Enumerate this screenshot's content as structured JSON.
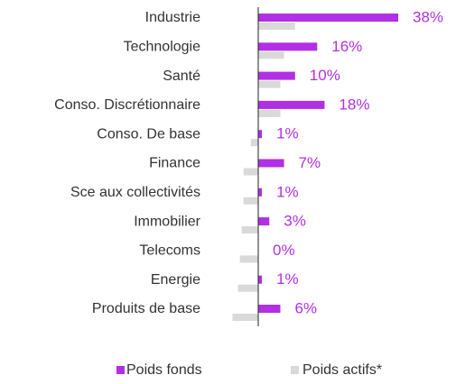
{
  "chart_data": {
    "type": "bar",
    "orientation": "horizontal",
    "categories": [
      "Industrie",
      "Technologie",
      "Santé",
      "Conso. Discrétionnaire",
      "Conso. De base",
      "Finance",
      "Sce aux collectivités",
      "Immobilier",
      "Telecoms",
      "Energie",
      "Produits de base"
    ],
    "series": [
      {
        "name": "Poids fonds",
        "color": "#b130e3",
        "values": [
          38,
          16,
          10,
          18,
          1,
          7,
          1,
          3,
          0,
          1,
          6
        ],
        "value_labels": [
          "38%",
          "16%",
          "10%",
          "18%",
          "1%",
          "7%",
          "1%",
          "3%",
          "0%",
          "1%",
          "6%"
        ]
      },
      {
        "name": "Poids actifs*",
        "color": "#d9d9d9",
        "values": [
          10,
          7,
          6,
          6,
          -2,
          -4,
          -4,
          -4.5,
          -5,
          -5.5,
          -7
        ]
      }
    ],
    "legend": "bottom"
  }
}
